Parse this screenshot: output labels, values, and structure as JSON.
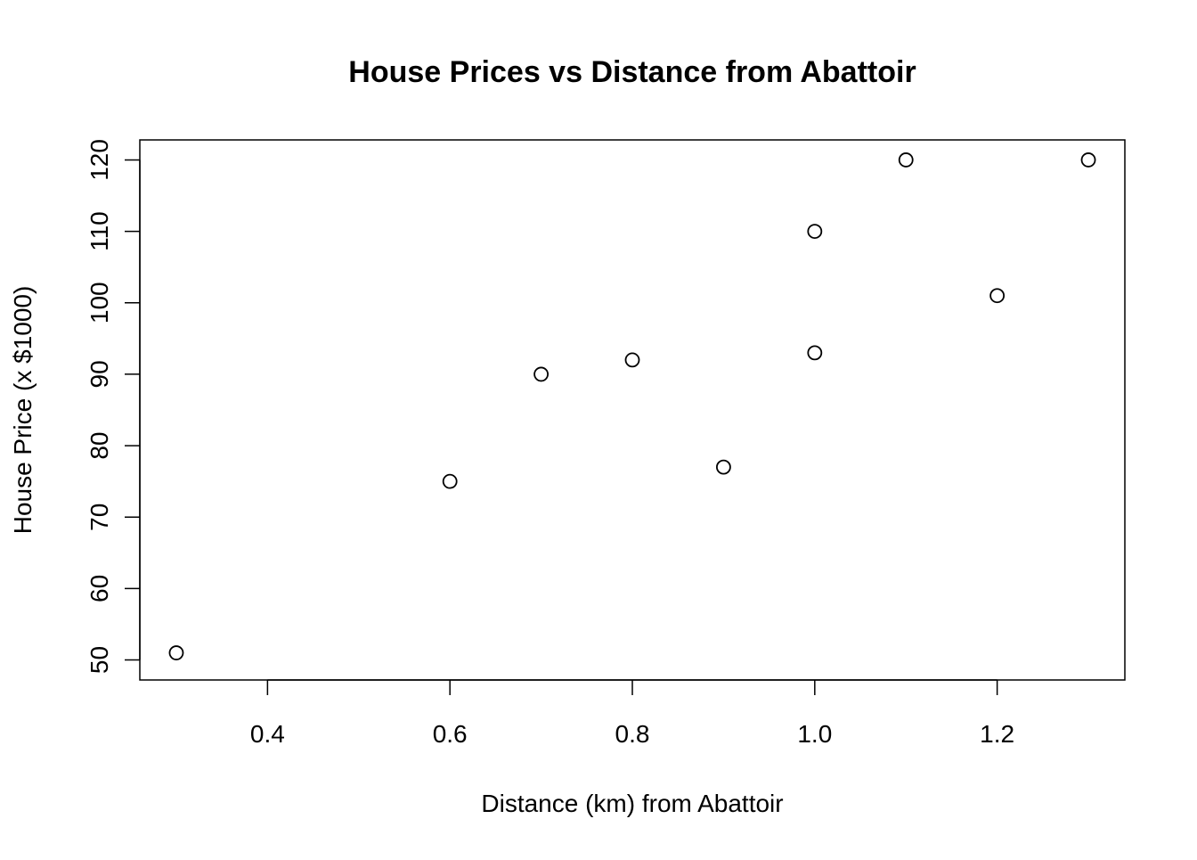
{
  "chart_data": {
    "type": "scatter",
    "title": "House Prices vs Distance from Abattoir",
    "xlabel": "Distance (km) from Abattoir",
    "ylabel": "House Price (x $1000)",
    "xlim": [
      0.26,
      1.34
    ],
    "ylim": [
      47.2,
      122.8
    ],
    "xticks": [
      0.4,
      0.6,
      0.8,
      1.0,
      1.2
    ],
    "xtick_labels": [
      "0.4",
      "0.6",
      "0.8",
      "1.0",
      "1.2"
    ],
    "yticks": [
      50,
      60,
      70,
      80,
      90,
      100,
      110,
      120
    ],
    "ytick_labels": [
      "50",
      "60",
      "70",
      "80",
      "90",
      "100",
      "110",
      "120"
    ],
    "grid": false,
    "marker": "open-circle",
    "color": "#000000",
    "points": [
      {
        "x": 0.3,
        "y": 51
      },
      {
        "x": 0.6,
        "y": 75
      },
      {
        "x": 0.7,
        "y": 90
      },
      {
        "x": 0.8,
        "y": 92
      },
      {
        "x": 0.9,
        "y": 77
      },
      {
        "x": 1.0,
        "y": 93
      },
      {
        "x": 1.0,
        "y": 110
      },
      {
        "x": 1.1,
        "y": 120
      },
      {
        "x": 1.2,
        "y": 101
      },
      {
        "x": 1.3,
        "y": 120
      }
    ]
  }
}
